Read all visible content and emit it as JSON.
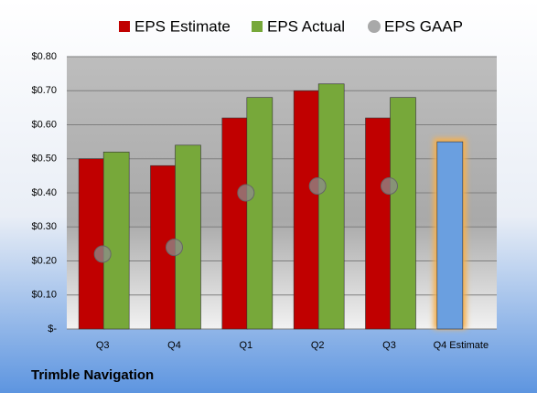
{
  "chart_data": {
    "type": "bar",
    "categories": [
      "Q3",
      "Q4",
      "Q1",
      "Q2",
      "Q3",
      "Q4 Estimate"
    ],
    "series": [
      {
        "name": "EPS Estimate",
        "color": "#c00000",
        "values": [
          0.5,
          0.48,
          0.62,
          0.7,
          0.62,
          0.55
        ],
        "point_colors": [
          "#c00000",
          "#c00000",
          "#c00000",
          "#c00000",
          "#c00000",
          "#6a9fe0"
        ]
      },
      {
        "name": "EPS Actual",
        "color": "#77a83a",
        "values": [
          0.52,
          0.54,
          0.68,
          0.72,
          0.68,
          null
        ]
      },
      {
        "name": "EPS GAAP",
        "color": "#8c8c8c",
        "marker": "circle",
        "values": [
          0.22,
          0.24,
          0.4,
          0.42,
          0.42,
          null
        ]
      }
    ],
    "ylim": [
      0,
      0.8
    ],
    "yticks": [
      {
        "value": 0,
        "label": "$-"
      },
      {
        "value": 0.1,
        "label": "$0.10"
      },
      {
        "value": 0.2,
        "label": "$0.20"
      },
      {
        "value": 0.3,
        "label": "$0.30"
      },
      {
        "value": 0.4,
        "label": "$0.40"
      },
      {
        "value": 0.5,
        "label": "$0.50"
      },
      {
        "value": 0.6,
        "label": "$0.60"
      },
      {
        "value": 0.7,
        "label": "$0.70"
      },
      {
        "value": 0.8,
        "label": "$0.80"
      }
    ],
    "grid": true,
    "legend": "top",
    "footer": "Trimble Navigation"
  }
}
